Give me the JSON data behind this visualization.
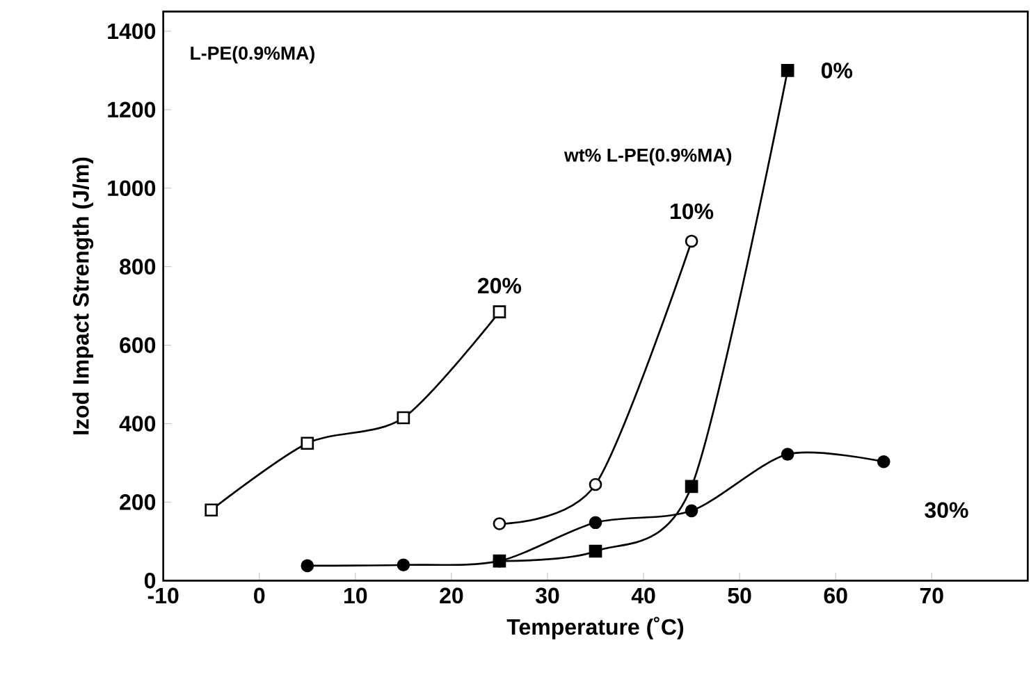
{
  "chart_data": {
    "type": "line",
    "xlabel": "Temperature (˚C)",
    "ylabel": "Izod Impact Strength (J/m)",
    "legend_title": "wt%  L-PE(0.9%MA)",
    "annotations": [
      "L-PE(0.9%MA)"
    ],
    "xlim": [
      -10,
      80
    ],
    "ylim": [
      0,
      1450
    ],
    "xticks": [
      -10,
      0,
      10,
      20,
      30,
      40,
      50,
      60,
      70
    ],
    "yticks": [
      0,
      200,
      400,
      600,
      800,
      1000,
      1200,
      1400
    ],
    "grid": false,
    "legend": false,
    "line_style": "solid",
    "series": [
      {
        "name": "20%",
        "color": "#ffffff",
        "marker": "square",
        "x": [
          -5,
          5,
          15,
          25
        ],
        "values": [
          180,
          350,
          415,
          685
        ]
      },
      {
        "name": "10%",
        "color": "#ffffff",
        "marker": "circle",
        "x": [
          25,
          35,
          45
        ],
        "values": [
          145,
          245,
          865
        ]
      },
      {
        "name": "0%",
        "color": "#000000",
        "marker": "square",
        "x": [
          25,
          35,
          45,
          55
        ],
        "values": [
          50,
          75,
          240,
          1300
        ]
      },
      {
        "name": "30%",
        "color": "#000000",
        "marker": "circle",
        "x": [
          5,
          15,
          25,
          35,
          45,
          55,
          65
        ],
        "values": [
          38,
          40,
          50,
          148,
          178,
          322,
          303
        ]
      }
    ]
  }
}
